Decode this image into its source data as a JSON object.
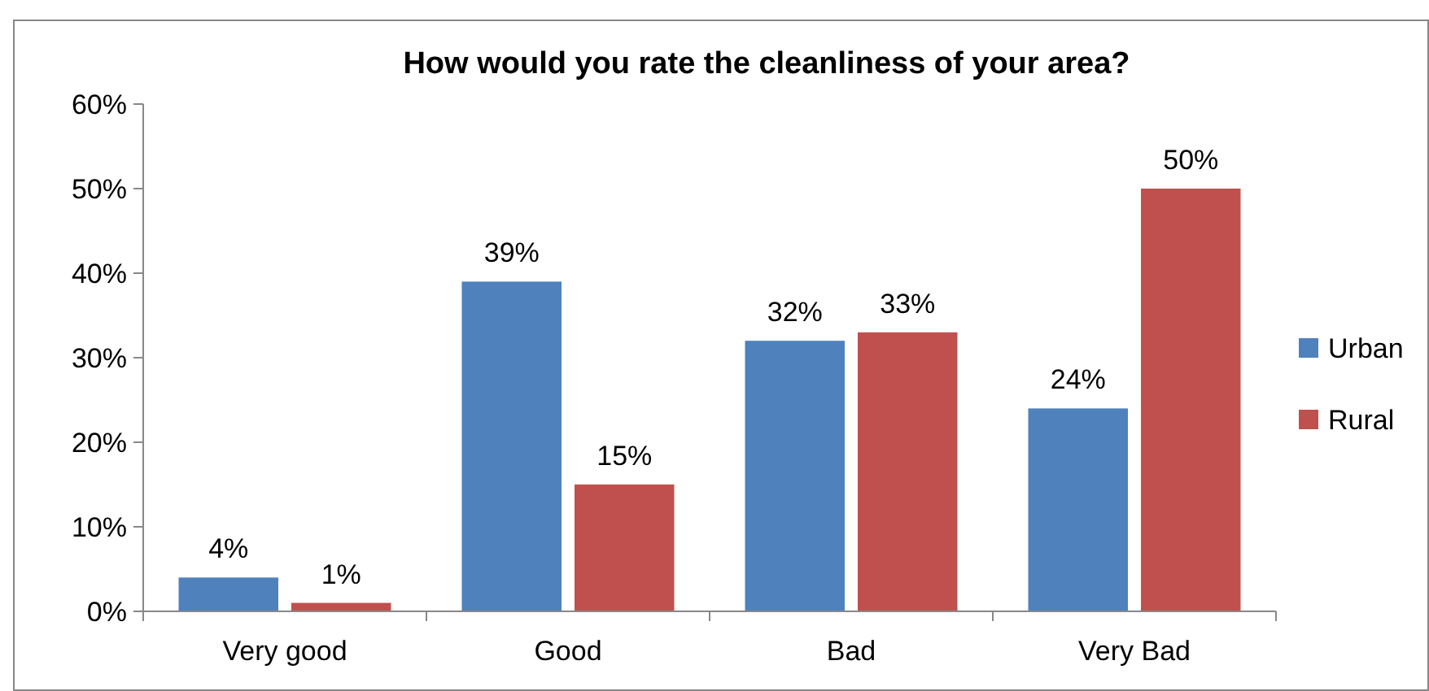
{
  "chart_data": {
    "type": "bar",
    "title": "How would you rate the cleanliness of your area?",
    "categories": [
      "Very good",
      "Good",
      "Bad",
      "Very Bad"
    ],
    "series": [
      {
        "name": "Urban",
        "color": "#4f81bd",
        "values": [
          4,
          39,
          32,
          24
        ],
        "value_labels": [
          "4%",
          "39%",
          "32%",
          "24%"
        ]
      },
      {
        "name": "Rural",
        "color": "#c0504d",
        "values": [
          1,
          15,
          33,
          50
        ],
        "value_labels": [
          "1%",
          "15%",
          "33%",
          "50%"
        ]
      }
    ],
    "ylim": [
      0,
      60
    ],
    "yticks": [
      {
        "value": 0,
        "label": "0%"
      },
      {
        "value": 10,
        "label": "10%"
      },
      {
        "value": 20,
        "label": "20%"
      },
      {
        "value": 30,
        "label": "30%"
      },
      {
        "value": 40,
        "label": "40%"
      },
      {
        "value": 50,
        "label": "50%"
      },
      {
        "value": 60,
        "label": "60%"
      }
    ],
    "grid": false,
    "legend": "right"
  }
}
